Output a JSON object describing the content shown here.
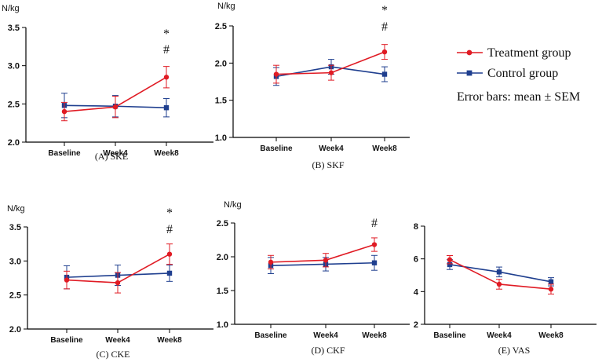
{
  "colors": {
    "treatment": "#e01b24",
    "control": "#1f3f8f"
  },
  "legend": {
    "entries": [
      {
        "name": "Treatment group",
        "series": "treatment",
        "marker": "circle"
      },
      {
        "name": "Control  group",
        "series": "control",
        "marker": "square"
      }
    ],
    "note": "Error bars: mean ±  SEM"
  },
  "chart_data": [
    {
      "id": "A",
      "type": "line",
      "title": "(A) SKE",
      "ylabel": "N/kg",
      "categories": [
        "Baseline",
        "Week4",
        "Week8"
      ],
      "ylim": [
        2.0,
        3.5
      ],
      "yticks": [
        "2.0",
        "2.5",
        "3.0",
        "3.5"
      ],
      "series": [
        {
          "name": "Treatment group",
          "values": [
            2.4,
            2.46,
            2.85
          ],
          "sem": [
            0.12,
            0.14,
            0.14
          ]
        },
        {
          "name": "Control  group",
          "values": [
            2.48,
            2.47,
            2.45
          ],
          "sem": [
            0.16,
            0.14,
            0.12
          ]
        }
      ],
      "annotations": [
        {
          "category": "Week8",
          "marks": [
            "*",
            "#"
          ]
        }
      ]
    },
    {
      "id": "B",
      "type": "line",
      "title": "(B) SKF",
      "ylabel": "N/kg",
      "categories": [
        "Baseline",
        "Week4",
        "Week8"
      ],
      "ylim": [
        1.0,
        2.5
      ],
      "yticks": [
        "1.0",
        "1.5",
        "2.0",
        "2.5"
      ],
      "series": [
        {
          "name": "Treatment group",
          "values": [
            1.85,
            1.87,
            2.15
          ],
          "sem": [
            0.12,
            0.1,
            0.1
          ]
        },
        {
          "name": "Control  group",
          "values": [
            1.82,
            1.95,
            1.85
          ],
          "sem": [
            0.12,
            0.1,
            0.1
          ]
        }
      ],
      "annotations": [
        {
          "category": "Week8",
          "marks": [
            "*",
            "#"
          ]
        }
      ]
    },
    {
      "id": "C",
      "type": "line",
      "title": "(C) CKE",
      "ylabel": "N/kg",
      "categories": [
        "Baseline",
        "Week4",
        "Week8"
      ],
      "ylim": [
        2.0,
        3.5
      ],
      "yticks": [
        "2.0",
        "2.5",
        "3.0",
        "3.5"
      ],
      "series": [
        {
          "name": "Treatment group",
          "values": [
            2.72,
            2.68,
            3.1
          ],
          "sem": [
            0.13,
            0.15,
            0.15
          ]
        },
        {
          "name": "Control  group",
          "values": [
            2.76,
            2.79,
            2.82
          ],
          "sem": [
            0.17,
            0.15,
            0.12
          ]
        }
      ],
      "annotations": [
        {
          "category": "Week8",
          "marks": [
            "*",
            "#"
          ]
        }
      ]
    },
    {
      "id": "D",
      "type": "line",
      "title": "(D) CKF",
      "ylabel": "N/kg",
      "categories": [
        "Baseline",
        "Week4",
        "Week8"
      ],
      "ylim": [
        1.0,
        2.5
      ],
      "yticks": [
        "1.0",
        "1.5",
        "2.0",
        "2.5"
      ],
      "series": [
        {
          "name": "Treatment group",
          "values": [
            1.92,
            1.95,
            2.18
          ],
          "sem": [
            0.1,
            0.1,
            0.1
          ]
        },
        {
          "name": "Control  group",
          "values": [
            1.87,
            1.89,
            1.91
          ],
          "sem": [
            0.12,
            0.1,
            0.11
          ]
        }
      ],
      "annotations": [
        {
          "category": "Week8",
          "marks": [
            "#"
          ]
        }
      ]
    },
    {
      "id": "E",
      "type": "line",
      "title": "(E) VAS",
      "ylabel": "",
      "categories": [
        "Baseline",
        "Week4",
        "Week8"
      ],
      "ylim": [
        2,
        8
      ],
      "yticks": [
        "2",
        "4",
        "6",
        "8"
      ],
      "series": [
        {
          "name": "Treatment group",
          "values": [
            5.95,
            4.45,
            4.15
          ],
          "sem": [
            0.25,
            0.3,
            0.3
          ]
        },
        {
          "name": "Control  group",
          "values": [
            5.65,
            5.2,
            4.6
          ],
          "sem": [
            0.3,
            0.3,
            0.25
          ]
        }
      ],
      "annotations": []
    }
  ]
}
